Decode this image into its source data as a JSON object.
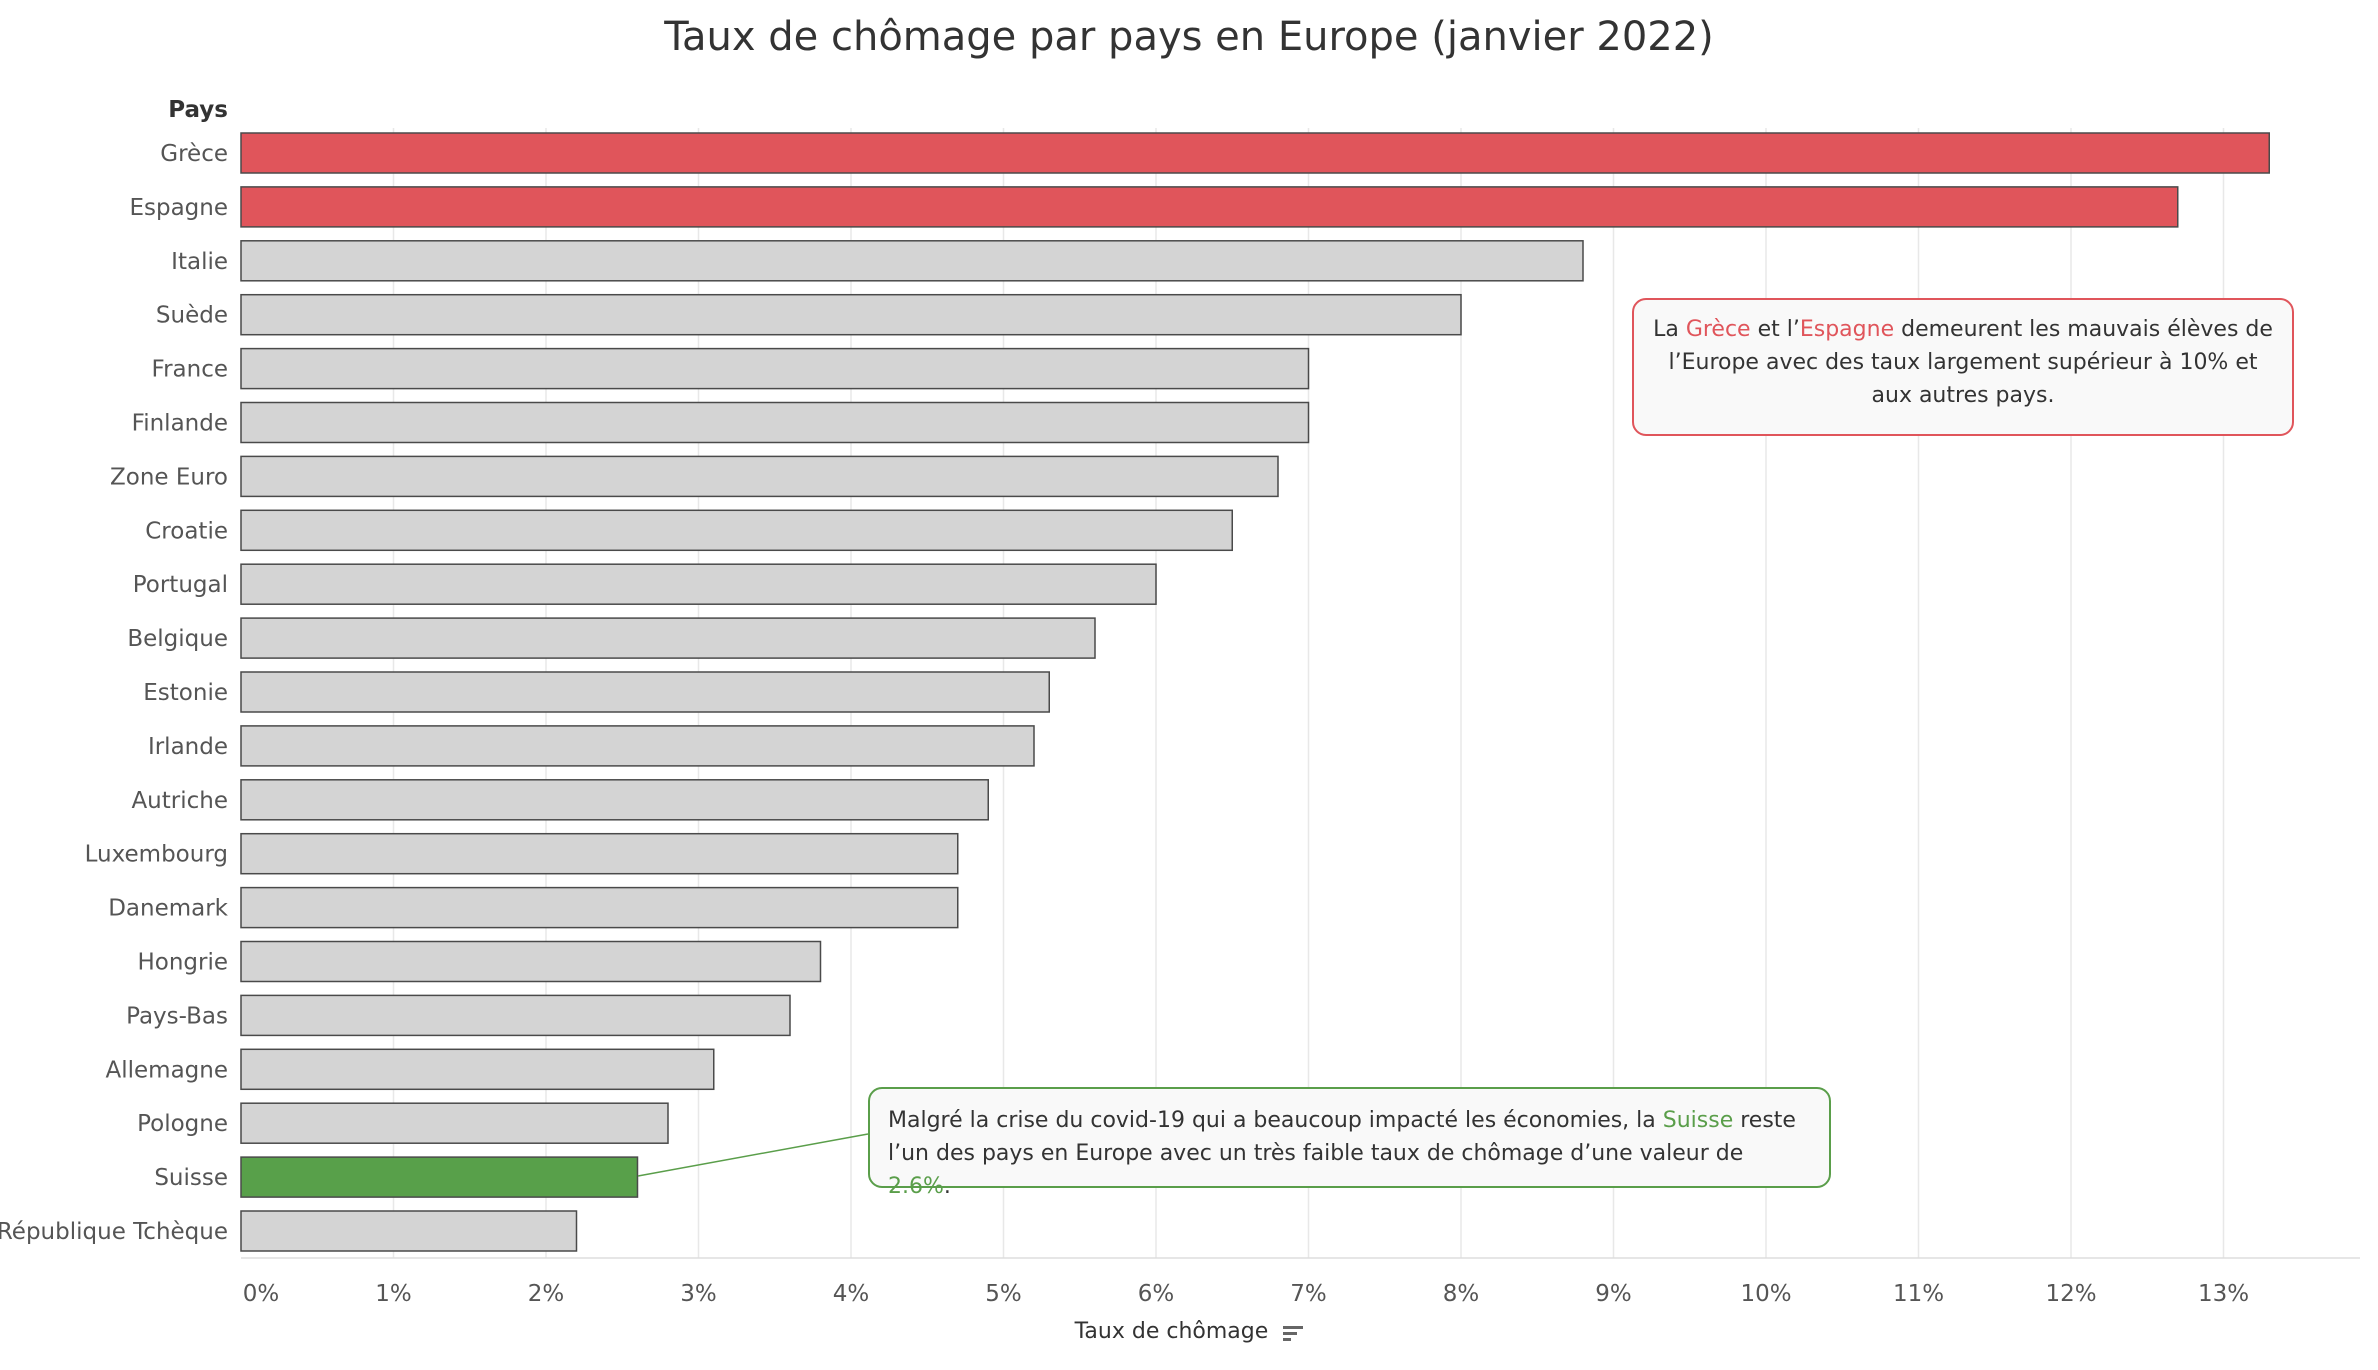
{
  "title": "Taux de chômage par pays en Europe (janvier 2022)",
  "colors": {
    "highlight_red": "#e0555b",
    "highlight_green": "#58a04a",
    "default_bar": "#d4d4d4",
    "bar_stroke": "#4a4a4a",
    "grid": "#e8e8e8"
  },
  "chart_data": {
    "type": "bar",
    "orientation": "horizontal",
    "title": "Taux de chômage par pays en Europe (janvier 2022)",
    "ylabel": "Pays",
    "xlabel": "Taux de chômage",
    "xlim": [
      0,
      13.5
    ],
    "x_ticks": [
      "0%",
      "1%",
      "2%",
      "3%",
      "4%",
      "5%",
      "6%",
      "7%",
      "8%",
      "9%",
      "10%",
      "11%",
      "12%",
      "13%"
    ],
    "grid": "vertical",
    "sort": "descending",
    "categories": [
      "Grèce",
      "Espagne",
      "Italie",
      "Suède",
      "France",
      "Finlande",
      "Zone Euro",
      "Croatie",
      "Portugal",
      "Belgique",
      "Estonie",
      "Irlande",
      "Autriche",
      "Luxembourg",
      "Danemark",
      "Hongrie",
      "Pays-Bas",
      "Allemagne",
      "Pologne",
      "Suisse",
      "République Tchèque"
    ],
    "values": [
      13.3,
      12.7,
      8.8,
      8.0,
      7.0,
      7.0,
      6.8,
      6.5,
      6.0,
      5.6,
      5.3,
      5.2,
      4.9,
      4.7,
      4.7,
      3.8,
      3.6,
      3.1,
      2.8,
      2.6,
      2.2
    ],
    "highlight": {
      "Grèce": "red",
      "Espagne": "red",
      "Suisse": "green"
    }
  },
  "annotations": {
    "red": {
      "p1": "La ",
      "country1": "Grèce",
      "p2": " et l’",
      "country2": "Espagne",
      "p3": " demeurent les mauvais élèves de l’Europe avec des taux largement supérieur à 10% et aux autres pays."
    },
    "green": {
      "p1": "Malgré la crise du covid-19 qui a beaucoup impacté les économies, la ",
      "country": "Suisse",
      "p2": " reste l’un des pays en Europe avec un très faible taux de chômage d’une valeur de ",
      "value": "2.6%",
      "p3": "."
    }
  }
}
